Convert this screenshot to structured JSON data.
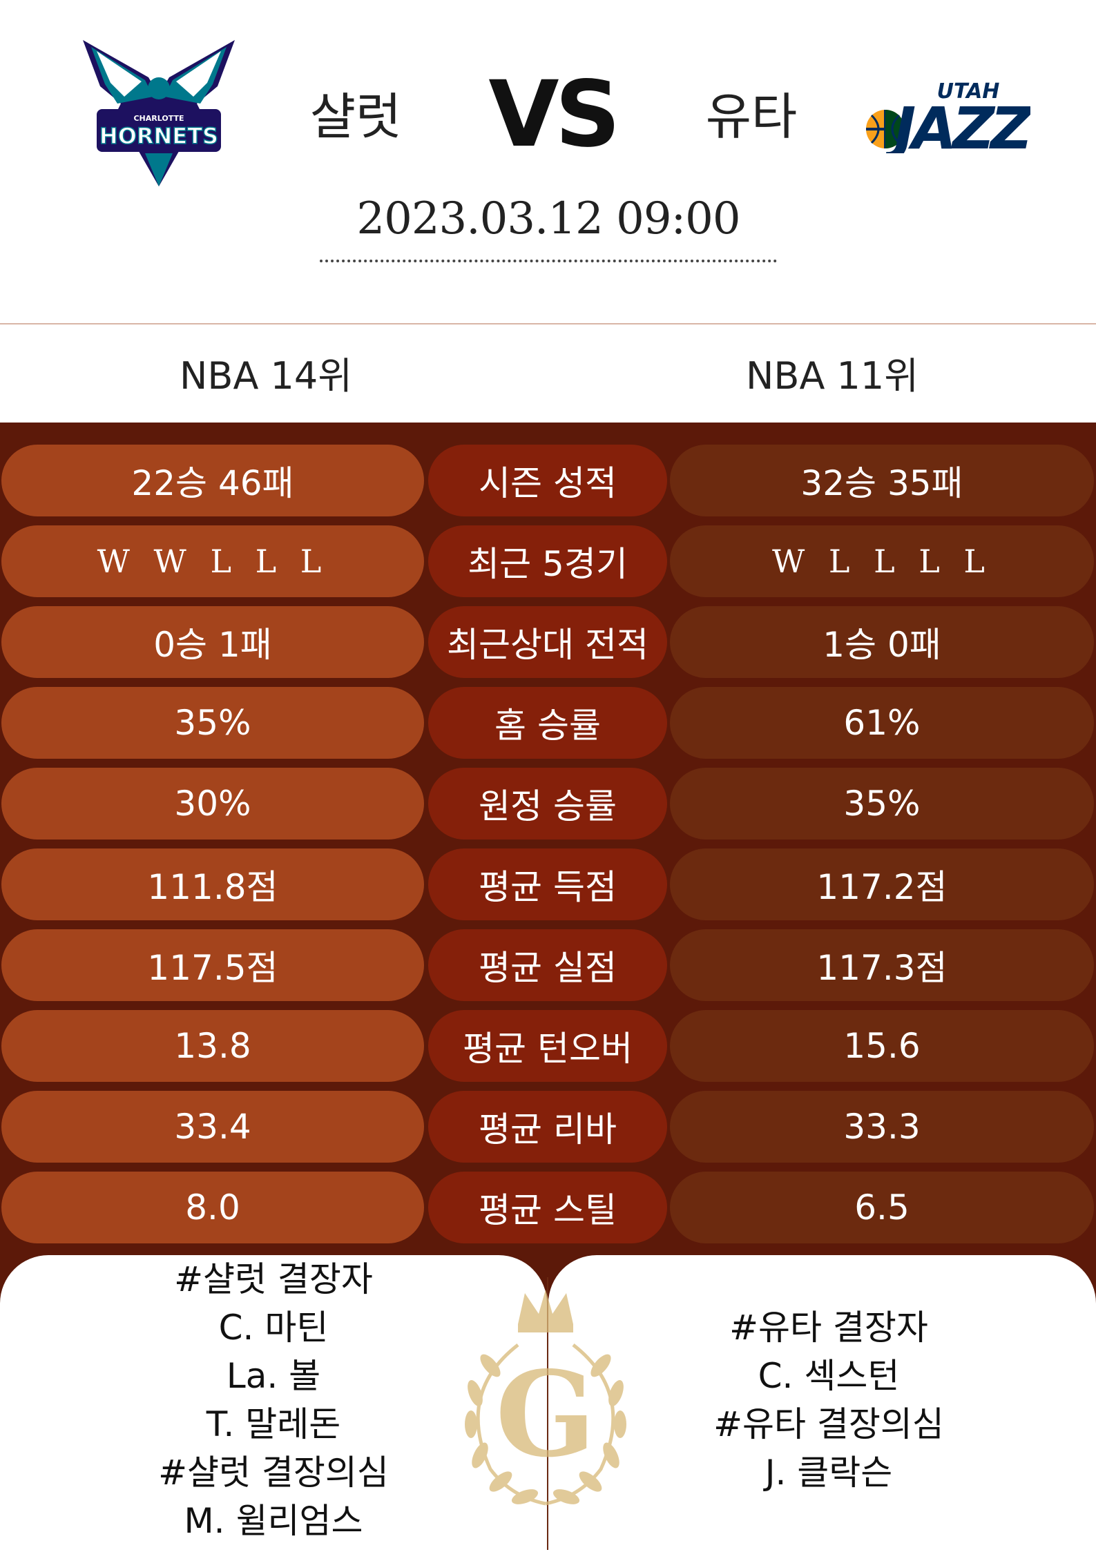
{
  "header": {
    "home_team": "샬럿",
    "away_team": "유타",
    "vs": "VS",
    "datetime": "2023.03.12  09:00",
    "home_logo_text": [
      "CHARLOTTE",
      "HORNETS"
    ],
    "away_logo_text": [
      "UTAH",
      "JAZZ"
    ]
  },
  "ranks": {
    "home": "NBA 14위",
    "away": "NBA 11위"
  },
  "stats": [
    {
      "home": "22승 46패",
      "label": "시즌 성적",
      "away": "32승 35패"
    },
    {
      "home": "W W L L L",
      "label": "최근 5경기",
      "away": "W L L L L"
    },
    {
      "home": "0승 1패",
      "label": "최근상대 전적",
      "away": "1승 0패"
    },
    {
      "home": "35%",
      "label": "홈 승률",
      "away": "61%"
    },
    {
      "home": "30%",
      "label": "원정 승률",
      "away": "35%"
    },
    {
      "home": "111.8점",
      "label": "평균 득점",
      "away": "117.2점"
    },
    {
      "home": "117.5점",
      "label": "평균 실점",
      "away": "117.3점"
    },
    {
      "home": "13.8",
      "label": "평균 턴오버",
      "away": "15.6"
    },
    {
      "home": "33.4",
      "label": "평균 리바",
      "away": "33.3"
    },
    {
      "home": "8.0",
      "label": "평균 스틸",
      "away": "6.5"
    }
  ],
  "injuries": {
    "home": [
      "#샬럿 결장자",
      "C. 마틴",
      "La. 볼",
      "T. 말레돈",
      "#샬럿 결장의심",
      "M. 윌리엄스"
    ],
    "away": [
      "#유타 결장자",
      "C. 섹스턴",
      "#유타 결장의심",
      "J. 클락슨"
    ]
  },
  "center_logo_letter": "G",
  "colors": {
    "stats_bg": "#5c1909",
    "home_pill": "#a4441c",
    "label_pill": "#85200a",
    "away_pill": "#6c2a0f",
    "gold": "#d8b978"
  }
}
